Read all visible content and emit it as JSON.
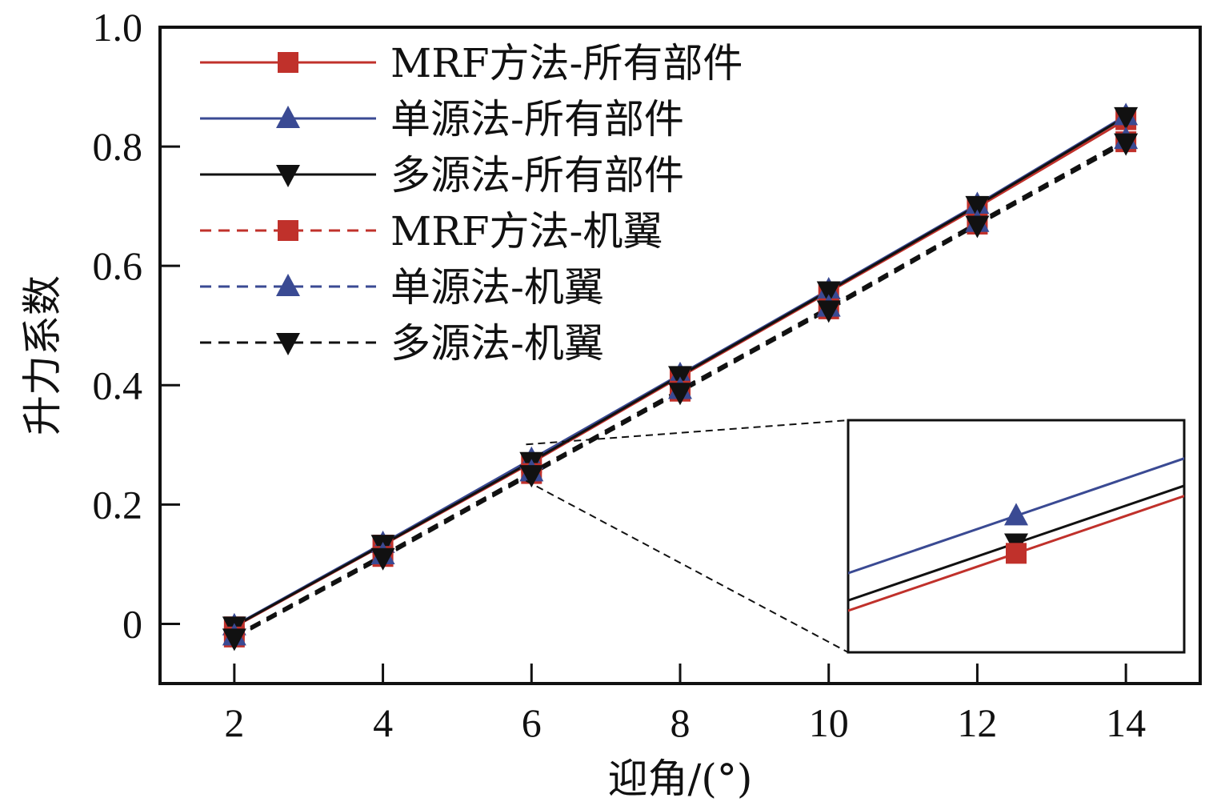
{
  "chart_data": {
    "type": "line",
    "title": "",
    "xlabel": "迎角/(°)",
    "ylabel": "升力系数",
    "xlim": [
      1.0,
      15.0
    ],
    "ylim": [
      -0.1,
      1.0
    ],
    "xticks": [
      2,
      4,
      6,
      8,
      10,
      12,
      14
    ],
    "yticks": [
      0,
      0.2,
      0.4,
      0.6,
      0.8,
      1.0
    ],
    "xtick_labels": [
      "2",
      "4",
      "6",
      "8",
      "10",
      "12",
      "14"
    ],
    "ytick_labels": [
      "0",
      "0.2",
      "0.4",
      "0.6",
      "0.8",
      "1.0"
    ],
    "grid": false,
    "legend_position": "top-left",
    "x": [
      2,
      4,
      6,
      8,
      10,
      12,
      14
    ],
    "series": [
      {
        "name": "MRF方法-所有部件",
        "values": [
          -0.005,
          0.132,
          0.27,
          0.414,
          0.556,
          0.698,
          0.845
        ],
        "color": "#c0312b",
        "dash": "solid",
        "marker": "square"
      },
      {
        "name": "单源法-所有部件",
        "values": [
          -0.003,
          0.135,
          0.276,
          0.418,
          0.56,
          0.703,
          0.852
        ],
        "color": "#3a4a93",
        "dash": "solid",
        "marker": "triangle-up"
      },
      {
        "name": "多源法-所有部件",
        "values": [
          -0.004,
          0.133,
          0.272,
          0.416,
          0.558,
          0.701,
          0.85
        ],
        "color": "#111111",
        "dash": "solid",
        "marker": "triangle-down"
      },
      {
        "name": "MRF方法-机翼",
        "values": [
          -0.022,
          0.113,
          0.252,
          0.39,
          0.528,
          0.67,
          0.808
        ],
        "color": "#c0312b",
        "dash": "dashed",
        "marker": "square"
      },
      {
        "name": "单源法-机翼",
        "values": [
          -0.02,
          0.116,
          0.255,
          0.393,
          0.531,
          0.673,
          0.812
        ],
        "color": "#3a4a93",
        "dash": "dashed",
        "marker": "triangle-up"
      },
      {
        "name": "多源法-机翼",
        "values": [
          -0.024,
          0.111,
          0.25,
          0.388,
          0.526,
          0.668,
          0.806
        ],
        "color": "#111111",
        "dash": "dashed",
        "marker": "triangle-down"
      }
    ],
    "inset": {
      "description": "zoom around x=6",
      "x_range": [
        5.88,
        6.12
      ],
      "y_range": [
        0.256,
        0.29
      ],
      "series": [
        {
          "name": "单源法-所有部件",
          "point": [
            6.0,
            0.276
          ],
          "color": "#3a4a93",
          "marker": "triangle-up"
        },
        {
          "name": "多源法-所有部件",
          "point": [
            6.0,
            0.272
          ],
          "color": "#111111",
          "marker": "triangle-down"
        },
        {
          "name": "MRF方法-所有部件",
          "point": [
            6.0,
            0.2705
          ],
          "color": "#c0312b",
          "marker": "square"
        }
      ]
    }
  }
}
